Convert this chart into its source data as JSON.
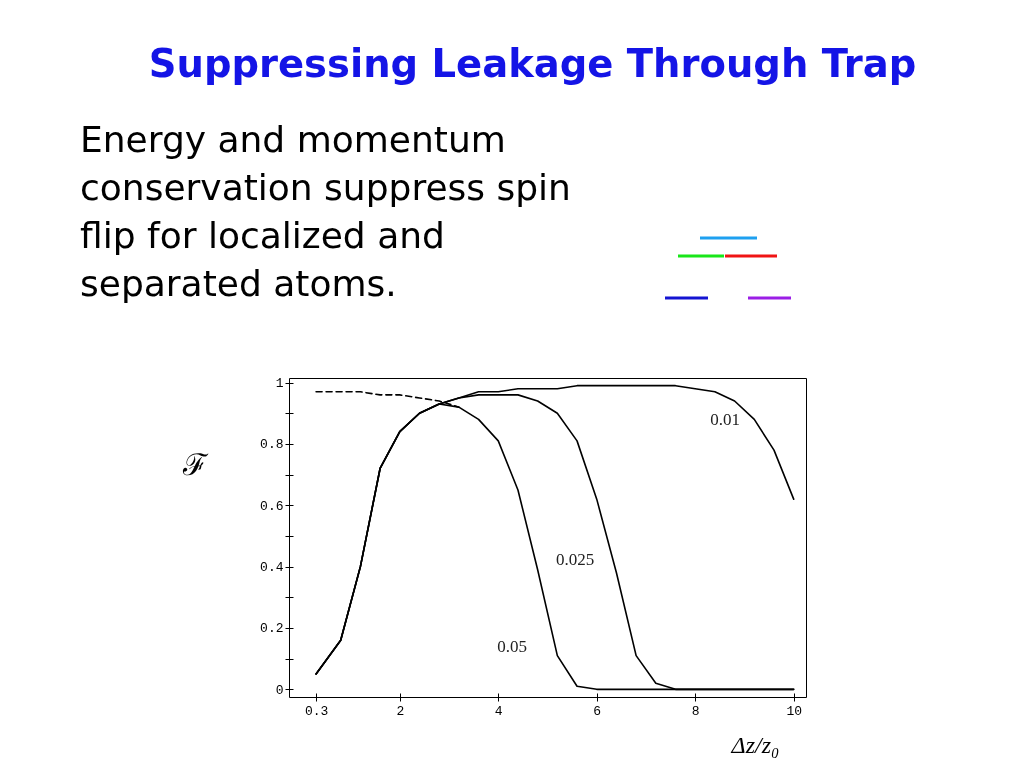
{
  "chart_data": {
    "type": "line",
    "title": "Suppressing Leakage Through Trap",
    "annotations": [
      "Energy and momentum conservation suppress spin flip for localized and separated atoms."
    ],
    "xlabel": "Δz/z₀",
    "ylabel": "ℱ",
    "xlim": [
      -0.25,
      10.25
    ],
    "ylim": [
      -0.025,
      1.015
    ],
    "xticks": [
      0.3,
      2,
      4,
      6,
      8,
      10
    ],
    "yticks": [
      0,
      {
        "value": 0.1,
        "label": null
      },
      0.2,
      {
        "value": 0.3,
        "label": null
      },
      0.4,
      {
        "value": 0.5,
        "label": null
      },
      0.6,
      {
        "value": 0.7,
        "label": null
      },
      0.8,
      {
        "value": 0.9,
        "label": null
      },
      1
    ],
    "grid": false,
    "marker": "none",
    "line_style": "solid",
    "x": [
      0.3,
      0.8,
      1.2,
      1.6,
      2,
      2.4,
      2.8,
      3.2,
      3.6,
      4,
      4.4,
      4.8,
      5.2,
      5.6,
      6,
      6.4,
      6.8,
      7.2,
      7.6,
      8,
      8.4,
      8.8,
      9.2,
      9.6,
      10
    ],
    "series": [
      {
        "name": "0.01",
        "color": "#000000",
        "values": [
          0.05,
          0.16,
          0.4,
          0.72,
          0.84,
          0.9,
          0.93,
          0.95,
          0.97,
          0.97,
          0.98,
          0.98,
          0.98,
          0.99,
          0.99,
          0.99,
          0.99,
          0.99,
          0.99,
          0.98,
          0.97,
          0.94,
          0.88,
          0.78,
          0.62
        ]
      },
      {
        "name": "0.025",
        "color": "#000000",
        "values": [
          0.05,
          0.16,
          0.4,
          0.72,
          0.84,
          0.9,
          0.93,
          0.95,
          0.96,
          0.96,
          0.96,
          0.94,
          0.9,
          0.81,
          0.62,
          0.38,
          0.11,
          0.02,
          0,
          0,
          0,
          0,
          0,
          0,
          0
        ]
      },
      {
        "name": "0.05",
        "color": "#000000",
        "values": [
          0.05,
          0.16,
          0.4,
          0.72,
          0.84,
          0.9,
          0.93,
          0.92,
          0.88,
          0.81,
          0.65,
          0.39,
          0.11,
          0.01,
          0,
          0,
          0,
          0,
          0,
          0,
          0,
          0,
          0,
          0,
          0
        ]
      },
      {
        "color": "#000000",
        "line_style": "dashed",
        "x": [
          0.3,
          0.8,
          1.2,
          1.6,
          2,
          2.4,
          2.8,
          3.2
        ],
        "values": [
          0.97,
          0.97,
          0.97,
          0.96,
          0.96,
          0.95,
          0.94,
          0.92
        ]
      }
    ]
  }
}
